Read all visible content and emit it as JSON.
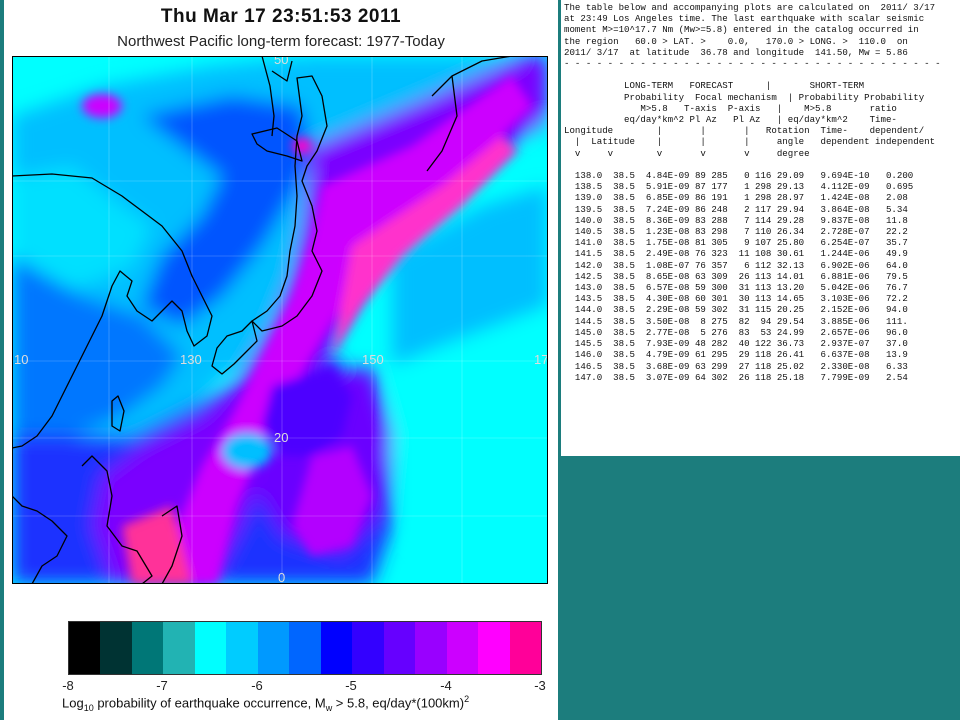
{
  "header": {
    "timestamp": "Thu Mar 17 23:51:53 2011",
    "subtitle": "Northwest Pacific long-term forecast: 1977-Today"
  },
  "map": {
    "grid_labels": {
      "lon_left": "10",
      "lon_130": "130",
      "lon_150": "150",
      "lon_right": "17",
      "lat_20": "20",
      "lat_0": "0",
      "top_50": "50"
    }
  },
  "colorbar": {
    "colors": [
      "#000000",
      "#003333",
      "#007777",
      "#22b3b3",
      "#00ffff",
      "#00ccff",
      "#0099ff",
      "#0066ff",
      "#0000ff",
      "#3300ff",
      "#6600ff",
      "#9900ff",
      "#cc00ff",
      "#ff00ff",
      "#ff0099"
    ],
    "ticks": {
      "t0": "-8",
      "t1": "-7",
      "t2": "-6",
      "t3": "-5",
      "t4": "-4",
      "t5": "-3"
    },
    "caption_pre": "Log",
    "caption_sub10": "10",
    "caption_mid": " probability of earthquake occurrence, M",
    "caption_subw": "w",
    "caption_post": " > 5.8, eq/day*(100km)",
    "caption_sup2": "2"
  },
  "table_panel": {
    "intro": [
      "The table below and accompanying plots are calculated on  2011/ 3/17",
      "at 23:49 Los Angeles time. The last earthquake with scalar seismic",
      "moment M>=10^17.7 Nm (Mw>=5.8) entered in the catalog occurred in",
      "the region   60.0 > LAT. >    0.0,   170.0 > LONG. >  110.0  on",
      "2011/ 3/17  at latitude  36.78 and longitude  141.50, Mw = 5.86"
    ],
    "separator": "- - - - - - - - - - - - - - - - - - - - - - - - - - - - - - - - - - -",
    "header_lines": [
      "           LONG-TERM   FORECAST      |       SHORT-TERM",
      "           Probability  Focal mechanism  | Probability Probability",
      "              M>5.8   T-axis  P-axis   |    M>5.8       ratio",
      "           eq/day*km^2 Pl Az   Pl Az   | eq/day*km^2    Time-",
      "Longitude        |       |       |   Rotation  Time-    dependent/",
      "  |  Latitude    |       |       |     angle   dependent independent",
      "  v     v        v       v       v     degree"
    ],
    "rows": [
      "  138.0  38.5  4.84E-09 89 285   0 116 29.09   9.694E-10   0.200",
      "  138.5  38.5  5.91E-09 87 177   1 298 29.13   4.112E-09   0.695",
      "  139.0  38.5  6.85E-09 86 191   1 298 28.97   1.424E-08   2.08",
      "  139.5  38.5  7.24E-09 86 248   2 117 29.94   3.864E-08   5.34",
      "  140.0  38.5  8.36E-09 83 288   7 114 29.28   9.837E-08   11.8",
      "  140.5  38.5  1.23E-08 83 298   7 110 26.34   2.728E-07   22.2",
      "  141.0  38.5  1.75E-08 81 305   9 107 25.80   6.254E-07   35.7",
      "  141.5  38.5  2.49E-08 76 323  11 108 30.61   1.244E-06   49.9",
      "  142.0  38.5  1.08E-07 76 357   6 112 32.13   6.902E-06   64.0",
      "  142.5  38.5  8.65E-08 63 309  26 113 14.01   6.881E-06   79.5",
      "  143.0  38.5  6.57E-08 59 300  31 113 13.20   5.042E-06   76.7",
      "  143.5  38.5  4.30E-08 60 301  30 113 14.65   3.103E-06   72.2",
      "  144.0  38.5  2.29E-08 59 302  31 115 20.25   2.152E-06   94.0",
      "  144.5  38.5  3.50E-08  8 275  82  94 29.54   3.885E-06   111.",
      "  145.0  38.5  2.77E-08  5 276  83  53 24.99   2.657E-06   96.0",
      "  145.5  38.5  7.93E-09 48 282  40 122 36.73   2.937E-07   37.0",
      "  146.0  38.5  4.79E-09 61 295  29 118 26.41   6.637E-08   13.9",
      "  146.5  38.5  3.68E-09 63 299  27 118 25.02   2.330E-08   6.33",
      "  147.0  38.5  3.07E-09 64 302  26 118 25.18   7.799E-09   2.54"
    ]
  }
}
